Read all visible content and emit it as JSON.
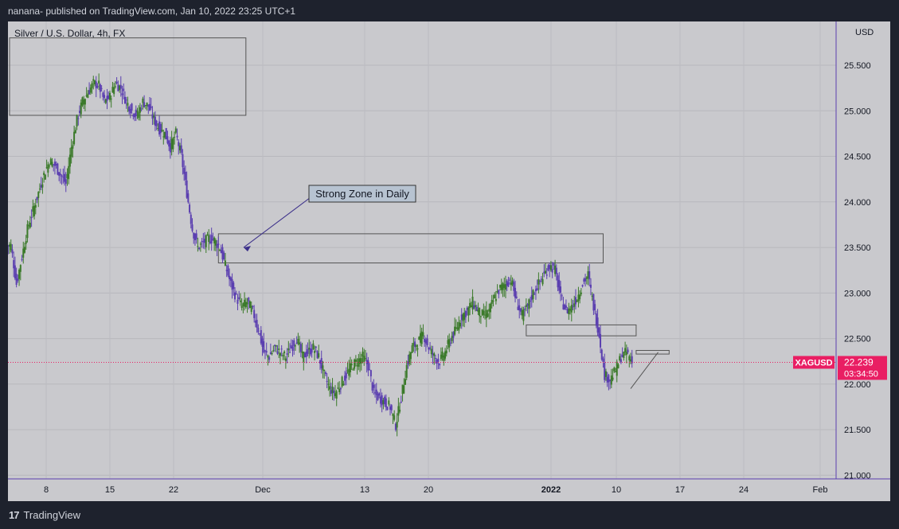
{
  "header": {
    "published_line": "nanana- published on TradingView.com, Jan 10, 2022 23:25 UTC+1"
  },
  "symbol_line": "Silver / U.S. Dollar, 4h, FX",
  "currency": "USD",
  "annotation": {
    "text": "Strong Zone in Daily"
  },
  "price_badge": {
    "symbol": "XAGUSD",
    "price": "22.239",
    "countdown": "03:34:50"
  },
  "footer": {
    "brand": "TradingView",
    "logo": "tradingview-logo-icon"
  },
  "colors": {
    "background": "#c9c9cd",
    "candle_up": "#3b7a2a",
    "candle_down": "#5b3fb0",
    "badge": "#e91e63",
    "frame": "#1e222d"
  },
  "chart_data": {
    "type": "candlestick",
    "timeframe": "4h",
    "y_ticks": [
      "25.500",
      "25.000",
      "24.500",
      "24.000",
      "23.500",
      "23.000",
      "22.500",
      "22.000",
      "21.500",
      "21.000"
    ],
    "ylim": [
      20.96,
      25.98
    ],
    "x_ticks": [
      "8",
      "15",
      "22",
      "Dec",
      "13",
      "20",
      "2022",
      "10",
      "17",
      "24",
      "Feb"
    ],
    "last_price": 22.239,
    "close_series": [
      23.52,
      23.1,
      23.4,
      23.7,
      23.9,
      24.1,
      24.3,
      24.45,
      24.4,
      24.3,
      24.2,
      24.6,
      24.9,
      25.1,
      25.2,
      25.3,
      25.28,
      25.1,
      25.15,
      25.3,
      25.25,
      25.1,
      25.0,
      24.95,
      25.1,
      25.05,
      24.9,
      24.8,
      24.75,
      24.6,
      24.75,
      24.5,
      24.1,
      23.7,
      23.5,
      23.55,
      23.6,
      23.58,
      23.5,
      23.3,
      23.1,
      22.95,
      22.85,
      22.9,
      22.8,
      22.6,
      22.35,
      22.3,
      22.4,
      22.35,
      22.3,
      22.4,
      22.5,
      22.3,
      22.35,
      22.4,
      22.3,
      22.1,
      21.95,
      21.9,
      22.0,
      22.1,
      22.2,
      22.25,
      22.3,
      22.2,
      21.9,
      21.85,
      21.8,
      21.75,
      21.55,
      21.85,
      22.2,
      22.4,
      22.45,
      22.55,
      22.4,
      22.3,
      22.25,
      22.35,
      22.5,
      22.6,
      22.75,
      22.8,
      22.9,
      22.8,
      22.75,
      22.8,
      22.95,
      23.05,
      23.1,
      23.15,
      22.9,
      22.75,
      22.85,
      23.0,
      23.1,
      23.2,
      23.3,
      23.25,
      22.95,
      22.8,
      22.85,
      22.95,
      23.1,
      23.2,
      22.85,
      22.55,
      22.1,
      22.05,
      22.15,
      22.3,
      22.35,
      22.239
    ],
    "zones": [
      {
        "name": "top-zone",
        "x_start": 0,
        "x_end": 43,
        "y_low": 24.95,
        "y_high": 25.8
      },
      {
        "name": "strong-zone",
        "x_start": 38,
        "x_end": 108,
        "y_low": 23.33,
        "y_high": 23.65
      },
      {
        "name": "mid-zone",
        "x_start": 94,
        "x_end": 114,
        "y_low": 22.53,
        "y_high": 22.65
      },
      {
        "name": "small-zone",
        "x_start": 114,
        "x_end": 120,
        "y_low": 22.33,
        "y_high": 22.37
      }
    ],
    "trendline": {
      "x_start": 113,
      "x_end": 118,
      "y_start": 21.95,
      "y_end": 22.35
    },
    "arrow": {
      "from_x": 55,
      "from_y": 24.05,
      "to_x": 47,
      "to_y": 23.5
    }
  }
}
